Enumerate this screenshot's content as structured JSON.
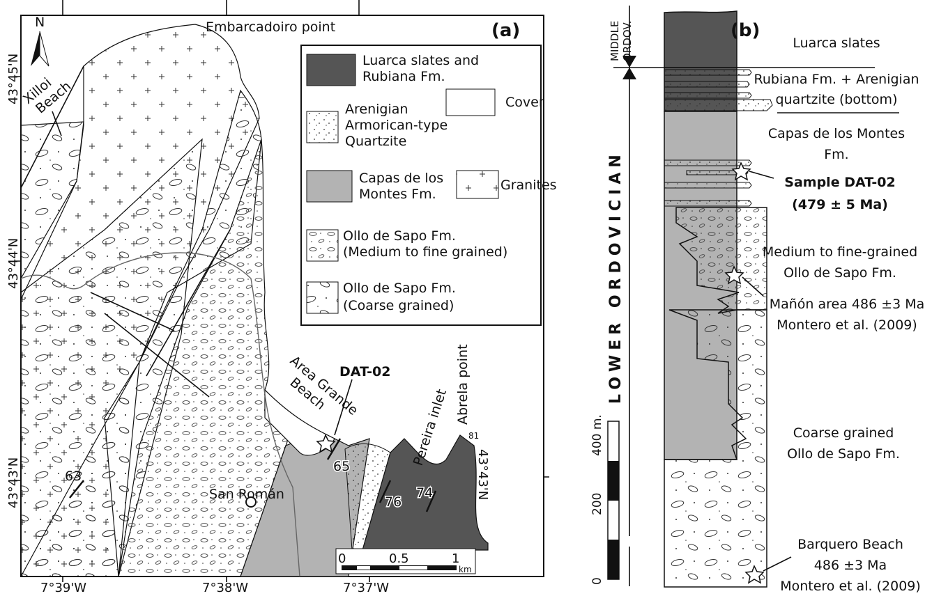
{
  "colors": {
    "luarca": "#555555",
    "capas": "#b3b3b3",
    "cover": "#ffffff",
    "ink": "#111111"
  },
  "map": {
    "panel_label": "(a)",
    "north_label": "N",
    "places": {
      "embarcadoiro": "Embarcadoiro point",
      "xilloi_1": "Xilloi",
      "xilloi_2": "Beach",
      "sample": "DAT-02",
      "area_grande": "Area Grande",
      "area_grande_2": "Beach",
      "pereira": "Pereira inlet",
      "abrela": "Abrela point",
      "san_roman": "San Román"
    },
    "dips": [
      "65",
      "76",
      "74",
      "63",
      "81"
    ],
    "lat_labels": [
      "43°45'N",
      "43°44'N",
      "43°43'N"
    ],
    "lat_right": "43°43'N",
    "lon_labels": [
      "7°39'W",
      "7°38'W",
      "7°37'W"
    ],
    "scale_bar": {
      "labels": [
        "0",
        "0.5",
        "1"
      ],
      "unit": "km"
    }
  },
  "legend": {
    "luarca": [
      "Luarca slates and",
      "Rubiana Fm."
    ],
    "arenigian": [
      "Arenigian",
      "Armorican-type",
      "Quartzite"
    ],
    "cover": "Cover",
    "capas": [
      "Capas de los",
      "Montes Fm."
    ],
    "granites": "Granites",
    "ollo_medium": [
      "Ollo de Sapo Fm.",
      "(Medium to fine grained)"
    ],
    "ollo_coarse": [
      "Ollo de Sapo Fm.",
      "(Coarse grained)"
    ]
  },
  "column": {
    "panel_label": "(b)",
    "middle_ordov": [
      "MIDDLE",
      "ORDOV."
    ],
    "lower_ordovician": "LOWER ORDOVICIAN",
    "scale": {
      "unit_label": "400 m.",
      "mid": "200",
      "zero": "0"
    },
    "labels": {
      "luarca": "Luarca slates",
      "rubiana_1": "Rubiana Fm. + Arenigian",
      "rubiana_2": "quartzite (bottom)",
      "capas_1": "Capas de los Montes",
      "capas_2": "Fm.",
      "sample_1": "Sample DAT-02",
      "sample_2": "(479 ± 5 Ma)",
      "medium_1": "Medium to fine-grained",
      "medium_2": "Ollo de Sapo Fm.",
      "manon_1": "Mañón area 486 ±3 Ma",
      "manon_2": "Montero et al. (2009)",
      "coarse_1": "Coarse grained",
      "coarse_2": "Ollo de Sapo Fm.",
      "barquero_1": "Barquero Beach",
      "barquero_2": "486 ±3 Ma",
      "barquero_3": "Montero et al. (2009)"
    }
  }
}
